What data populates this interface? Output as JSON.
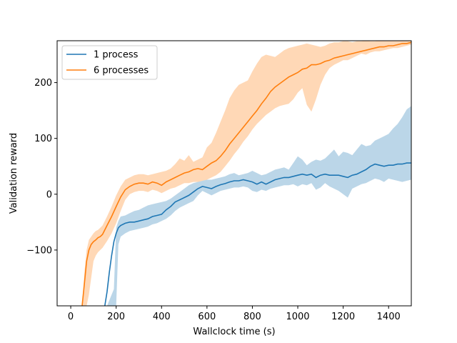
{
  "chart_data": {
    "type": "line",
    "xlabel": "Wallclock time (s)",
    "ylabel": "Validation reward",
    "xlim": [
      -60,
      1500
    ],
    "ylim": [
      -200,
      275
    ],
    "xticks": [
      0,
      200,
      400,
      600,
      800,
      1000,
      1200,
      1400
    ],
    "yticks": [
      -100,
      0,
      100,
      200
    ],
    "ytick_labels": [
      "−100",
      "0",
      "100",
      "200"
    ],
    "grid": false,
    "legend_position": "top-left",
    "colors": {
      "1 process": "#1f77b4",
      "6 processes": "#ff7f0e"
    },
    "series": [
      {
        "name": "1 process",
        "color": "#1f77b4",
        "x": [
          150,
          160,
          170,
          180,
          190,
          200,
          210,
          220,
          240,
          260,
          280,
          300,
          320,
          340,
          360,
          380,
          400,
          420,
          440,
          460,
          480,
          500,
          520,
          540,
          560,
          580,
          600,
          620,
          640,
          660,
          680,
          700,
          720,
          740,
          760,
          780,
          800,
          820,
          840,
          860,
          880,
          900,
          920,
          940,
          960,
          980,
          1000,
          1020,
          1040,
          1060,
          1080,
          1100,
          1120,
          1140,
          1160,
          1180,
          1200,
          1220,
          1240,
          1260,
          1280,
          1300,
          1320,
          1340,
          1360,
          1380,
          1400,
          1420,
          1440,
          1460,
          1480,
          1500
        ],
        "mean": [
          -200,
          -175,
          -140,
          -110,
          -85,
          -70,
          -60,
          -56,
          -52,
          -50,
          -50,
          -48,
          -46,
          -44,
          -40,
          -38,
          -36,
          -28,
          -22,
          -14,
          -10,
          -6,
          -2,
          4,
          10,
          14,
          12,
          10,
          14,
          17,
          19,
          22,
          24,
          24,
          26,
          24,
          22,
          18,
          22,
          18,
          22,
          26,
          28,
          30,
          30,
          32,
          34,
          36,
          34,
          36,
          30,
          34,
          36,
          34,
          34,
          34,
          32,
          30,
          34,
          36,
          40,
          44,
          50,
          54,
          52,
          50,
          52,
          52,
          54,
          54,
          56,
          56
        ],
        "upper": [
          -200,
          -200,
          -190,
          -180,
          -170,
          -60,
          -48,
          -40,
          -38,
          -34,
          -30,
          -28,
          -24,
          -20,
          -18,
          -16,
          -14,
          -12,
          -8,
          -2,
          4,
          10,
          16,
          20,
          22,
          24,
          26,
          26,
          28,
          30,
          32,
          36,
          38,
          34,
          36,
          38,
          42,
          38,
          34,
          36,
          40,
          44,
          46,
          48,
          44,
          56,
          68,
          62,
          52,
          58,
          62,
          60,
          64,
          72,
          80,
          68,
          76,
          74,
          70,
          80,
          90,
          86,
          88,
          96,
          100,
          104,
          108,
          118,
          126,
          138,
          152,
          158
        ],
        "lower": [
          -200,
          -200,
          -200,
          -200,
          -200,
          -200,
          -90,
          -76,
          -70,
          -66,
          -64,
          -62,
          -60,
          -58,
          -54,
          -52,
          -48,
          -44,
          -38,
          -30,
          -24,
          -20,
          -16,
          -12,
          -2,
          6,
          2,
          -2,
          2,
          6,
          8,
          10,
          12,
          12,
          14,
          12,
          6,
          4,
          8,
          6,
          10,
          12,
          14,
          16,
          16,
          18,
          14,
          18,
          16,
          20,
          8,
          12,
          20,
          14,
          10,
          6,
          0,
          -6,
          10,
          14,
          18,
          20,
          24,
          28,
          26,
          22,
          28,
          26,
          24,
          22,
          24,
          26
        ]
      },
      {
        "name": "6 processes",
        "color": "#ff7f0e",
        "x": [
          50,
          60,
          70,
          80,
          90,
          100,
          110,
          120,
          130,
          140,
          160,
          180,
          200,
          220,
          240,
          260,
          280,
          300,
          320,
          340,
          360,
          380,
          400,
          420,
          440,
          460,
          480,
          500,
          520,
          540,
          560,
          580,
          600,
          620,
          640,
          660,
          680,
          700,
          720,
          740,
          760,
          780,
          800,
          820,
          840,
          860,
          880,
          900,
          920,
          940,
          960,
          980,
          1000,
          1020,
          1040,
          1060,
          1080,
          1100,
          1120,
          1140,
          1160,
          1180,
          1200,
          1220,
          1240,
          1260,
          1280,
          1300,
          1320,
          1340,
          1360,
          1380,
          1400,
          1420,
          1440,
          1460,
          1480,
          1500
        ],
        "mean": [
          -200,
          -160,
          -120,
          -100,
          -90,
          -85,
          -82,
          -78,
          -76,
          -72,
          -56,
          -40,
          -22,
          -5,
          8,
          14,
          18,
          20,
          20,
          18,
          22,
          20,
          16,
          22,
          26,
          30,
          34,
          38,
          40,
          44,
          46,
          44,
          50,
          56,
          60,
          68,
          78,
          90,
          100,
          110,
          120,
          130,
          140,
          150,
          162,
          172,
          184,
          192,
          198,
          204,
          210,
          214,
          218,
          224,
          226,
          232,
          232,
          234,
          238,
          240,
          244,
          246,
          248,
          250,
          252,
          254,
          256,
          258,
          260,
          262,
          264,
          264,
          266,
          266,
          268,
          270,
          270,
          272
        ],
        "upper": [
          -200,
          -140,
          -100,
          -82,
          -76,
          -70,
          -66,
          -64,
          -60,
          -56,
          -40,
          -22,
          -2,
          14,
          26,
          30,
          34,
          36,
          36,
          34,
          36,
          38,
          40,
          42,
          46,
          54,
          64,
          60,
          70,
          58,
          62,
          66,
          84,
          92,
          110,
          130,
          150,
          172,
          186,
          196,
          200,
          204,
          220,
          234,
          246,
          250,
          248,
          246,
          252,
          258,
          262,
          264,
          266,
          268,
          270,
          268,
          266,
          264,
          266,
          270,
          272,
          272,
          274,
          274,
          272,
          274,
          274,
          275,
          274,
          274,
          275,
          275,
          275,
          275,
          275,
          275,
          275,
          275
        ],
        "lower": [
          -200,
          -200,
          -200,
          -180,
          -150,
          -120,
          -110,
          -104,
          -100,
          -96,
          -84,
          -70,
          -52,
          -30,
          -10,
          0,
          4,
          6,
          6,
          4,
          8,
          6,
          2,
          6,
          10,
          12,
          16,
          20,
          20,
          22,
          22,
          24,
          26,
          30,
          34,
          40,
          50,
          60,
          72,
          82,
          94,
          104,
          116,
          126,
          134,
          142,
          148,
          154,
          158,
          160,
          162,
          170,
          182,
          190,
          160,
          148,
          170,
          196,
          214,
          226,
          232,
          236,
          240,
          240,
          244,
          248,
          252,
          250,
          254,
          256,
          256,
          258,
          260,
          262,
          262,
          264,
          266,
          268
        ]
      }
    ]
  }
}
